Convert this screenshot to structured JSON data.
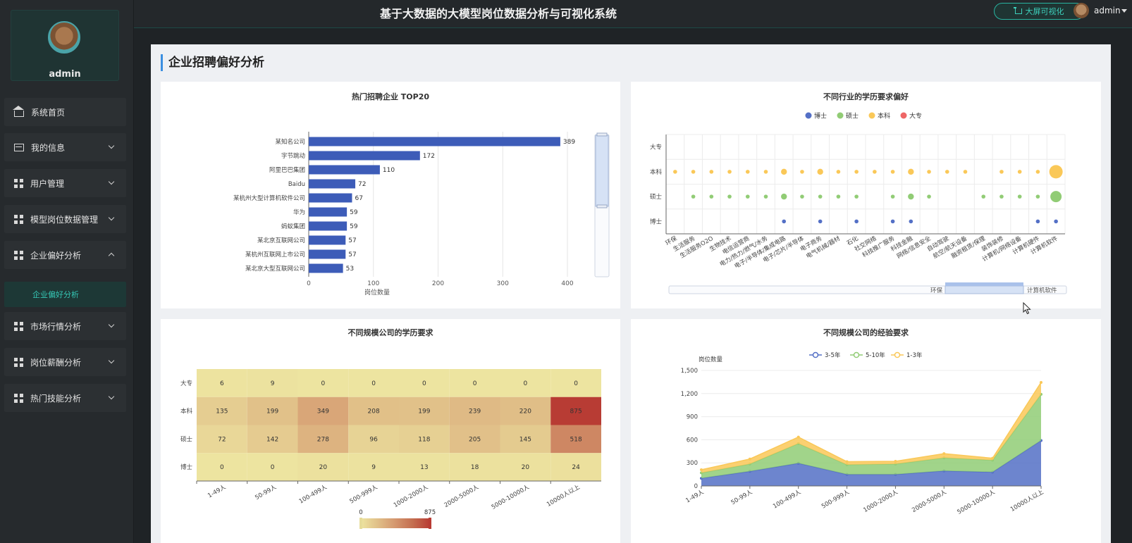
{
  "header": {
    "title": "基于大数据的大模型岗位数据分析与可视化系统",
    "bigscreen_label": "大屏可视化",
    "username": "admin"
  },
  "sidebar": {
    "username": "admin",
    "items": [
      {
        "label": "系统首页",
        "icon": "home-icon"
      },
      {
        "label": "我的信息",
        "icon": "card-icon"
      },
      {
        "label": "用户管理",
        "icon": "grid-icon"
      },
      {
        "label": "模型岗位数据管理",
        "icon": "grid-icon"
      },
      {
        "label": "企业偏好分析",
        "icon": "grid-icon"
      },
      {
        "label": "市场行情分析",
        "icon": "grid-icon"
      },
      {
        "label": "岗位薪酬分析",
        "icon": "grid-icon"
      },
      {
        "label": "热门技能分析",
        "icon": "grid-icon"
      }
    ],
    "active_sub": "企业偏好分析"
  },
  "page": {
    "title": "企业招聘偏好分析"
  },
  "chart_data": [
    {
      "type": "bar",
      "orientation": "horizontal",
      "title": "热门招聘企业 TOP20",
      "xlabel": "岗位数量",
      "xlim": [
        0,
        400
      ],
      "xticks": [
        0,
        100,
        200,
        300,
        400
      ],
      "categories": [
        "某知名公司",
        "字节跳动",
        "阿里巴巴集团",
        "Baidu",
        "某杭州大型计算机软件公司",
        "华为",
        "蚂蚁集团",
        "某北京互联网公司",
        "某杭州互联网上市公司",
        "某北京大型互联网公司"
      ],
      "values": [
        389,
        172,
        110,
        72,
        67,
        59,
        59,
        57,
        57,
        53
      ],
      "color": "#3d5cb8"
    },
    {
      "type": "scatter",
      "title": "不同行业的学历要求偏好",
      "legend": [
        "博士",
        "硕士",
        "本科",
        "大专"
      ],
      "legend_colors": [
        "#5470c6",
        "#91cc75",
        "#fac858",
        "#ee6666"
      ],
      "y_categories": [
        "博士",
        "硕士",
        "本科",
        "大专"
      ],
      "x_categories": [
        "环保",
        "生活服务",
        "生活服务O2O",
        "生物技术",
        "电信运营商",
        "电力/热力/燃气/水务",
        "电子/半导体/集成电路",
        "电子/芯片/半导体",
        "电子商务",
        "电气机械/器材",
        "石化",
        "社交网络",
        "科技推广服务",
        "科技金融",
        "网络/信息安全",
        "自动驾驶",
        "航空/航天设备",
        "融资租赁/保理",
        "装饰装修",
        "计算机/网络设备",
        "计算机硬件",
        "计算机软件"
      ],
      "points": {
        "本科": [
          1,
          1,
          1,
          1,
          1,
          1,
          2,
          1,
          2,
          1,
          1,
          1,
          1,
          2,
          1,
          1,
          1,
          0,
          1,
          1,
          1,
          5
        ],
        "硕士": [
          0,
          1,
          1,
          1,
          1,
          1,
          2,
          1,
          1,
          1,
          1,
          0,
          1,
          2,
          1,
          0,
          0,
          1,
          1,
          1,
          1,
          4
        ],
        "博士": [
          0,
          0,
          0,
          0,
          0,
          0,
          1,
          0,
          1,
          0,
          1,
          0,
          1,
          1,
          0,
          0,
          0,
          0,
          0,
          0,
          1,
          1
        ],
        "大专": [
          0,
          0,
          0,
          0,
          0,
          0,
          0,
          0,
          0,
          0,
          0,
          0,
          0,
          0,
          0,
          0,
          0,
          0,
          0,
          0,
          0,
          0
        ]
      },
      "zoom_labels": [
        "环保",
        "计算机软件"
      ]
    },
    {
      "type": "heatmap",
      "title": "不同规模公司的学历要求",
      "x_categories": [
        "1-49人",
        "50-99人",
        "100-499人",
        "500-999人",
        "1000-2000人",
        "2000-5000人",
        "5000-10000人",
        "10000人以上"
      ],
      "y_categories": [
        "大专",
        "本科",
        "硕士",
        "博士"
      ],
      "values": [
        [
          6,
          9,
          0,
          0,
          0,
          0,
          0,
          0
        ],
        [
          135,
          199,
          349,
          208,
          199,
          239,
          220,
          875
        ],
        [
          72,
          142,
          278,
          96,
          118,
          205,
          145,
          518
        ],
        [
          0,
          0,
          20,
          9,
          13,
          18,
          20,
          24
        ]
      ],
      "visual_range": [
        0,
        875
      ]
    },
    {
      "type": "area",
      "stacked": true,
      "title": "不同规模公司的经验要求",
      "ylabel": "岗位数量",
      "ylim": [
        0,
        1500
      ],
      "yticks": [
        "0",
        "300",
        "600",
        "900",
        "1,200",
        "1,500"
      ],
      "categories": [
        "1-49人",
        "50-99人",
        "100-499人",
        "500-999人",
        "1000-2000人",
        "2000-5000人",
        "5000-10000人",
        "10000人以上"
      ],
      "series": [
        {
          "name": "3-5年",
          "color": "#5470c6",
          "values": [
            100,
            190,
            295,
            150,
            150,
            195,
            180,
            590
          ]
        },
        {
          "name": "5-10年",
          "color": "#91cc75",
          "values": [
            70,
            95,
            255,
            125,
            135,
            170,
            155,
            600
          ]
        },
        {
          "name": "1-3年",
          "color": "#fac858",
          "values": [
            40,
            65,
            85,
            40,
            35,
            55,
            25,
            155
          ]
        }
      ]
    }
  ]
}
